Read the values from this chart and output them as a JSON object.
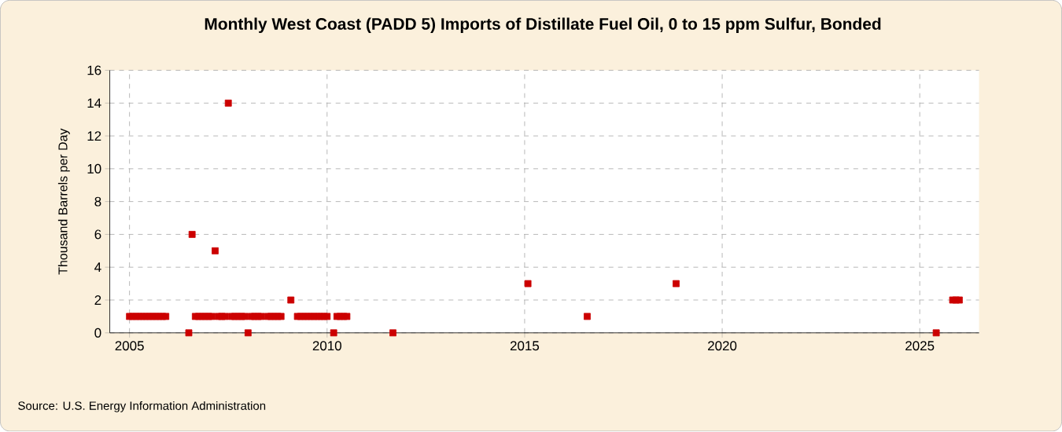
{
  "chart_data": {
    "type": "scatter",
    "title": "Monthly West Coast (PADD 5) Imports of Distillate Fuel Oil, 0 to 15 ppm Sulfur, Bonded",
    "ylabel": "Thousand Barrels per Day",
    "x": [
      "2005-01",
      "2005-02",
      "2005-03",
      "2005-04",
      "2005-05",
      "2005-06",
      "2005-07",
      "2005-08",
      "2005-09",
      "2005-10",
      "2005-11",
      "2005-12",
      "2006-07",
      "2006-08",
      "2006-09",
      "2006-10",
      "2006-11",
      "2006-12",
      "2007-01",
      "2007-02",
      "2007-03",
      "2007-04",
      "2007-05",
      "2007-06",
      "2007-07",
      "2007-08",
      "2007-09",
      "2007-10",
      "2007-11",
      "2007-12",
      "2008-01",
      "2008-02",
      "2008-03",
      "2008-04",
      "2008-05",
      "2008-07",
      "2008-08",
      "2008-09",
      "2008-10",
      "2008-11",
      "2009-02",
      "2009-04",
      "2009-05",
      "2009-06",
      "2009-07",
      "2009-08",
      "2009-09",
      "2009-10",
      "2009-11",
      "2009-12",
      "2010-01",
      "2010-03",
      "2010-04",
      "2010-05",
      "2010-06",
      "2010-07",
      "2011-09",
      "2015-02",
      "2016-08",
      "2018-11",
      "2025-06",
      "2025-11",
      "2025-12",
      "2026-01"
    ],
    "values": [
      1,
      1,
      1,
      1,
      1,
      1,
      1,
      1,
      1,
      1,
      1,
      1,
      0,
      6,
      1,
      1,
      1,
      1,
      1,
      1,
      5,
      1,
      1,
      1,
      14,
      1,
      1,
      1,
      1,
      1,
      0,
      1,
      1,
      1,
      1,
      1,
      1,
      1,
      1,
      1,
      2,
      1,
      1,
      1,
      1,
      1,
      1,
      1,
      1,
      1,
      1,
      0,
      1,
      1,
      1,
      1,
      0,
      3,
      1,
      3,
      0,
      2,
      2,
      2
    ],
    "color": "#cc0000",
    "marker": "square",
    "grid": true,
    "xlim": [
      "2004-07",
      "2026-07"
    ],
    "xticks": [
      "2005",
      "2010",
      "2015",
      "2020",
      "2025"
    ],
    "ylim": [
      0,
      16
    ],
    "yticks": [
      0,
      2,
      4,
      6,
      8,
      10,
      12,
      14,
      16
    ],
    "annotations": [
      "Source: U.S. Energy Information Administration"
    ]
  }
}
